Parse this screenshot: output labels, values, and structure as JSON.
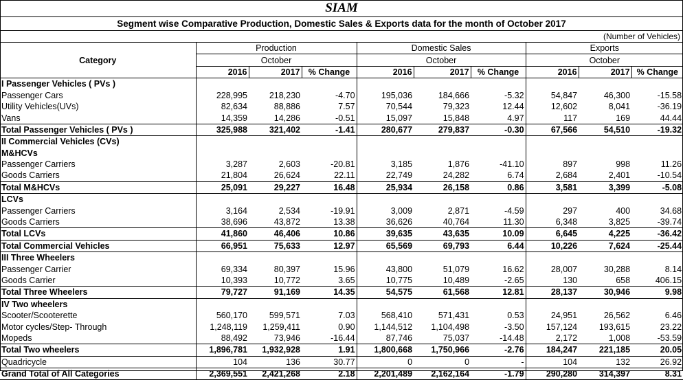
{
  "title": "SIAM",
  "subtitle": "Segment wise Comparative Production, Domestic Sales & Exports data for the month of October 2017",
  "unit_note": "(Number of Vehicles)",
  "header": {
    "category": "Category",
    "groups": [
      "Production",
      "Domestic Sales",
      "Exports"
    ],
    "month": "October",
    "cols": [
      "2016",
      "2017",
      "% Change"
    ]
  },
  "rows": [
    {
      "type": "section",
      "label": "I Passenger Vehicles ( PVs )"
    },
    {
      "type": "data",
      "label": "Passenger Cars",
      "v": [
        "228,995",
        "218,230",
        "-4.70",
        "195,036",
        "184,666",
        "-5.32",
        "54,847",
        "46,300",
        "-15.58"
      ]
    },
    {
      "type": "data",
      "label": "Utility Vehicles(UVs)",
      "v": [
        "82,634",
        "88,886",
        "7.57",
        "70,544",
        "79,323",
        "12.44",
        "12,602",
        "8,041",
        "-36.19"
      ]
    },
    {
      "type": "data",
      "label": "Vans",
      "v": [
        "14,359",
        "14,286",
        "-0.51",
        "15,097",
        "15,848",
        "4.97",
        "117",
        "169",
        "44.44"
      ]
    },
    {
      "type": "total",
      "label": "Total Passenger Vehicles ( PVs )",
      "v": [
        "325,988",
        "321,402",
        "-1.41",
        "280,677",
        "279,837",
        "-0.30",
        "67,566",
        "54,510",
        "-19.32"
      ]
    },
    {
      "type": "section",
      "label": "II Commercial Vehicles (CVs)"
    },
    {
      "type": "section",
      "label": "M&HCVs"
    },
    {
      "type": "data",
      "label": "Passenger Carriers",
      "v": [
        "3,287",
        "2,603",
        "-20.81",
        "3,185",
        "1,876",
        "-41.10",
        "897",
        "998",
        "11.26"
      ]
    },
    {
      "type": "data",
      "label": "Goods Carriers",
      "v": [
        "21,804",
        "26,624",
        "22.11",
        "22,749",
        "24,282",
        "6.74",
        "2,684",
        "2,401",
        "-10.54"
      ]
    },
    {
      "type": "total",
      "label": "Total M&HCVs",
      "v": [
        "25,091",
        "29,227",
        "16.48",
        "25,934",
        "26,158",
        "0.86",
        "3,581",
        "3,399",
        "-5.08"
      ]
    },
    {
      "type": "section",
      "label": "LCVs"
    },
    {
      "type": "data",
      "label": "Passenger Carriers",
      "v": [
        "3,164",
        "2,534",
        "-19.91",
        "3,009",
        "2,871",
        "-4.59",
        "297",
        "400",
        "34.68"
      ]
    },
    {
      "type": "data",
      "label": "Goods Carriers",
      "v": [
        "38,696",
        "43,872",
        "13.38",
        "36,626",
        "40,764",
        "11.30",
        "6,348",
        "3,825",
        "-39.74"
      ]
    },
    {
      "type": "total",
      "label": "Total LCVs",
      "v": [
        "41,860",
        "46,406",
        "10.86",
        "39,635",
        "43,635",
        "10.09",
        "6,645",
        "4,225",
        "-36.42"
      ]
    },
    {
      "type": "total",
      "label": "Total  Commercial Vehicles",
      "v": [
        "66,951",
        "75,633",
        "12.97",
        "65,569",
        "69,793",
        "6.44",
        "10,226",
        "7,624",
        "-25.44"
      ]
    },
    {
      "type": "section",
      "label": "III Three Wheelers"
    },
    {
      "type": "data",
      "label": "Passenger Carrier",
      "v": [
        "69,334",
        "80,397",
        "15.96",
        "43,800",
        "51,079",
        "16.62",
        "28,007",
        "30,288",
        "8.14"
      ]
    },
    {
      "type": "data",
      "label": "Goods Carrier",
      "v": [
        "10,393",
        "10,772",
        "3.65",
        "10,775",
        "10,489",
        "-2.65",
        "130",
        "658",
        "406.15"
      ]
    },
    {
      "type": "total",
      "label": "Total Three Wheelers",
      "v": [
        "79,727",
        "91,169",
        "14.35",
        "54,575",
        "61,568",
        "12.81",
        "28,137",
        "30,946",
        "9.98"
      ]
    },
    {
      "type": "section",
      "label": "IV Two wheelers"
    },
    {
      "type": "data",
      "label": "Scooter/Scooterette",
      "v": [
        "560,170",
        "599,571",
        "7.03",
        "568,410",
        "571,431",
        "0.53",
        "24,951",
        "26,562",
        "6.46"
      ]
    },
    {
      "type": "data",
      "label": "Motor cycles/Step- Through",
      "v": [
        "1,248,119",
        "1,259,411",
        "0.90",
        "1,144,512",
        "1,104,498",
        "-3.50",
        "157,124",
        "193,615",
        "23.22"
      ]
    },
    {
      "type": "data",
      "label": "Mopeds",
      "v": [
        "88,492",
        "73,946",
        "-16.44",
        "87,746",
        "75,037",
        "-14.48",
        "2,172",
        "1,008",
        "-53.59"
      ]
    },
    {
      "type": "total",
      "label": "Total Two wheelers",
      "v": [
        "1,896,781",
        "1,932,928",
        "1.91",
        "1,800,668",
        "1,750,966",
        "-2.76",
        "184,247",
        "221,185",
        "20.05"
      ]
    },
    {
      "type": "quad",
      "label": "Quadricycle",
      "v": [
        "104",
        "136",
        "30.77",
        "0",
        "0",
        "-",
        "104",
        "132",
        "26.92"
      ]
    },
    {
      "type": "total",
      "label": "Grand Total of All Categories",
      "v": [
        "2,369,551",
        "2,421,268",
        "2.18",
        "2,201,489",
        "2,162,164",
        "-1.79",
        "290,280",
        "314,397",
        "8.31"
      ]
    }
  ]
}
